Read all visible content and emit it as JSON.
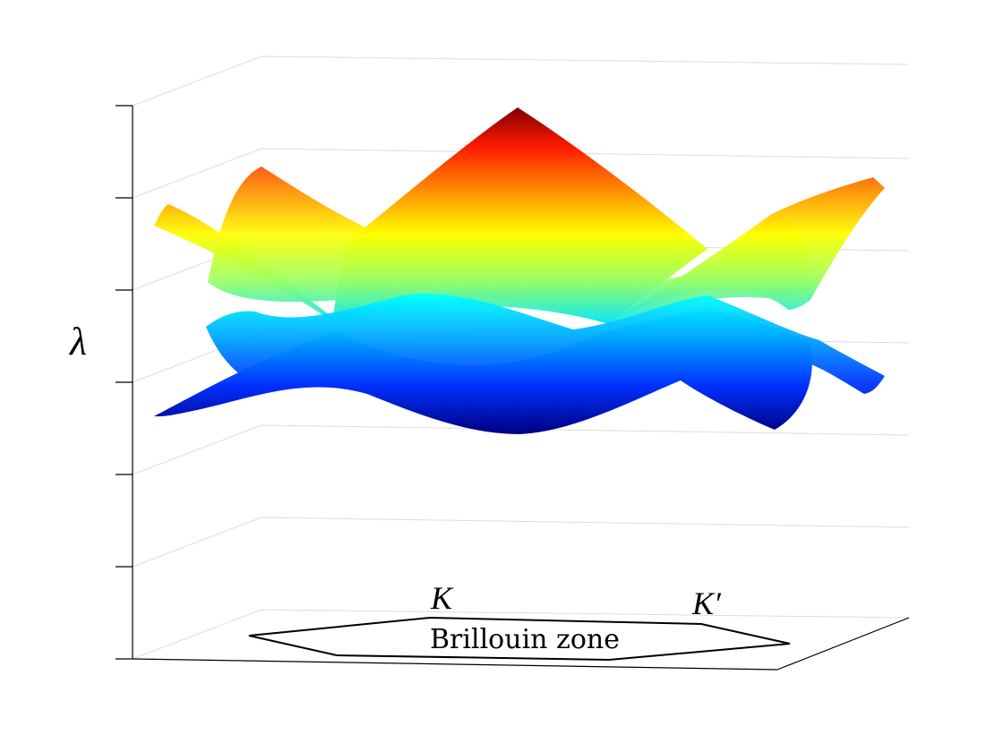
{
  "axis": {
    "ylabel": "λ"
  },
  "brillouin_zone": {
    "label": "Brillouin zone",
    "point_k": "K",
    "point_k_prime": "K′"
  },
  "colors": {
    "surface_high": "#8b0000",
    "surface_mid": "#ffff00",
    "surface_low": "#00008b",
    "grid": "#dcdcdc",
    "axis": "#000000"
  }
}
